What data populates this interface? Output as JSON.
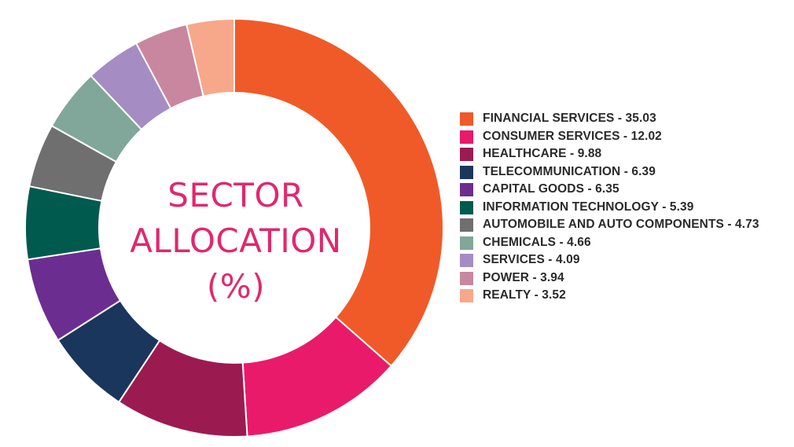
{
  "chart_data": {
    "type": "pie",
    "style": "donut",
    "center_title": [
      "SECTOR",
      "ALLOCATION",
      "(%)"
    ],
    "legend_position": "right",
    "slices": [
      {
        "label": "FINANCIAL SERVICES",
        "value": 35.03,
        "legend_text": "FINANCIAL SERVICES - 35.03",
        "color": "#f05a28"
      },
      {
        "label": "CONSUMER SERVICES",
        "value": 12.02,
        "legend_text": "CONSUMER SERVICES - 12.02",
        "color": "#ea1a6a"
      },
      {
        "label": "HEALTHCARE",
        "value": 9.88,
        "legend_text": "HEALTHCARE - 9.88",
        "color": "#9b1b50"
      },
      {
        "label": "TELECOMMUNICATION",
        "value": 6.39,
        "legend_text": "TELECOMMUNICATION - 6.39",
        "color": "#1b365d"
      },
      {
        "label": "CAPITAL GOODS",
        "value": 6.35,
        "legend_text": "CAPITAL GOODS - 6.35",
        "color": "#6c2d91"
      },
      {
        "label": "INFORMATION TECHNOLOGY",
        "value": 5.39,
        "legend_text": "INFORMATION TECHNOLOGY - 5.39",
        "color": "#005a4e"
      },
      {
        "label": "AUTOMOBILE AND AUTO COMPONENTS",
        "value": 4.73,
        "legend_text": "AUTOMOBILE AND AUTO COMPONENTS - 4.73",
        "color": "#6f6f6f"
      },
      {
        "label": "CHEMICALS",
        "value": 4.66,
        "legend_text": "CHEMICALS - 4.66",
        "color": "#81a69a"
      },
      {
        "label": "SERVICES",
        "value": 4.09,
        "legend_text": "SERVICES - 4.09",
        "color": "#a58dc3"
      },
      {
        "label": "POWER",
        "value": 3.94,
        "legend_text": "POWER - 3.94",
        "color": "#c8879e"
      },
      {
        "label": "REALTY",
        "value": 3.52,
        "legend_text": "REALTY - 3.52",
        "color": "#f7a88a"
      }
    ]
  }
}
